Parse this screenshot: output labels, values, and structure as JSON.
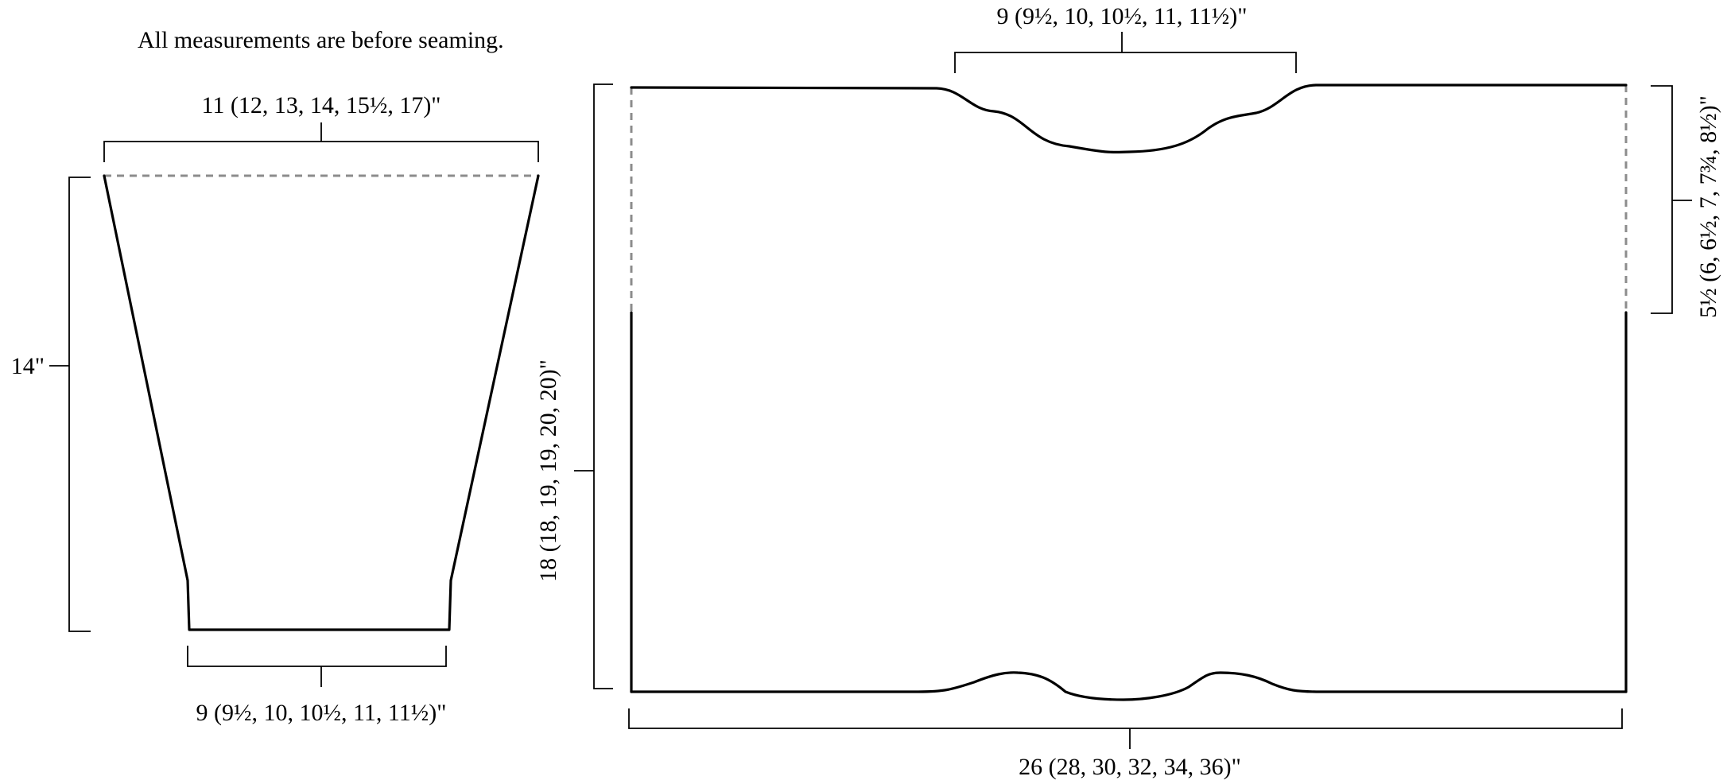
{
  "note": "All measurements are before seaming.",
  "sleeve": {
    "top_width": "11 (12, 13, 14, 15½, 17)\"",
    "length": "14\"",
    "cuff_width": "9 (9½, 10, 10½, 11, 11½)\""
  },
  "body": {
    "neck_width": "9 (9½, 10, 10½, 11, 11½)\"",
    "total_length": "18 (18, 19, 19, 20, 20)\"",
    "armhole_depth": "5½ (6, 6½, 7, 7¾, 8½)\"",
    "width": "26 (28, 30, 32, 34, 36)\""
  },
  "colors": {
    "outline": "#000000",
    "open_edge_dashed": "#8c8c8c"
  }
}
